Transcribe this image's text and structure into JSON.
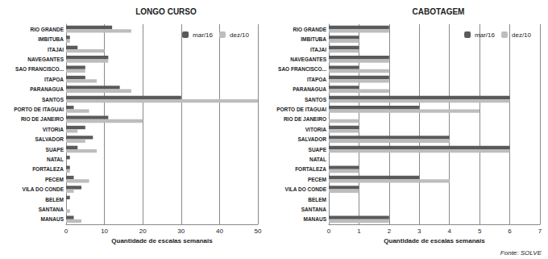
{
  "chart_data": [
    {
      "type": "bar",
      "title": "LONGO CURSO",
      "orientation": "horizontal",
      "x_label": "Quantidade de escalas semanais",
      "categories": [
        "RIO GRANDE",
        "IMBITUBA",
        "ITAJAI",
        "NAVEGANTES",
        "SAO FRANCISCO...",
        "ITAPOA",
        "PARANAGUA",
        "SANTOS",
        "PORTO DE ITAGUAI",
        "RIO DE JANEIRO",
        "VITORIA",
        "SALVADOR",
        "SUAPE",
        "NATAL",
        "FORTALEZA",
        "PECEM",
        "VILA DO CONDE",
        "BELEM",
        "SANTANA",
        "MANAUS"
      ],
      "series": [
        {
          "name": "mar/16",
          "color": "#5a5a5a",
          "values": [
            12,
            1,
            3,
            11,
            5,
            5,
            14,
            30,
            2,
            11,
            5,
            7,
            3,
            1,
            1,
            2,
            4,
            1,
            0,
            2
          ]
        },
        {
          "name": "dez/10",
          "color": "#bdbdbd",
          "values": [
            17,
            1,
            10,
            11,
            5,
            8,
            17,
            50,
            6,
            20,
            3,
            5,
            8,
            0,
            1,
            6,
            2,
            0,
            1,
            4
          ]
        }
      ],
      "xlim": [
        0,
        50
      ],
      "xticks": [
        0,
        10,
        20,
        30,
        40,
        50
      ],
      "grid": true,
      "legend": "upper right"
    },
    {
      "type": "bar",
      "title": "CABOTAGEM",
      "orientation": "horizontal",
      "x_label": "Quantidade de escalas semanais",
      "categories": [
        "RIO GRANDE",
        "IMBITUBA",
        "ITAJAI",
        "NAVEGANTES",
        "SAO FRANCISCO...",
        "ITAPOA",
        "PARANAGUA",
        "SANTOS",
        "PORTO DE ITAGUAI",
        "RIO DE JANEIRO",
        "VITORIA",
        "SALVADOR",
        "SUAPE",
        "NATAL",
        "FORTALEZA",
        "PECEM",
        "VILA DO CONDE",
        "BELEM",
        "SANTANA",
        "MANAUS"
      ],
      "series": [
        {
          "name": "mar/16",
          "color": "#5a5a5a",
          "values": [
            2,
            1,
            1,
            2,
            1,
            2,
            1,
            6,
            3,
            0,
            1,
            4,
            6,
            0,
            1,
            3,
            1,
            0,
            0,
            2
          ]
        },
        {
          "name": "dez/10",
          "color": "#bdbdbd",
          "values": [
            2,
            1,
            1,
            2,
            2,
            2,
            2,
            6,
            5,
            1,
            1,
            4,
            6,
            0,
            1,
            4,
            1,
            0,
            0,
            2
          ]
        }
      ],
      "xlim": [
        0,
        7
      ],
      "xticks": [
        0,
        1,
        2,
        3,
        4,
        5,
        6,
        7
      ],
      "grid": true,
      "legend": "upper right",
      "annotations": [
        "Fonte: SOLVE"
      ]
    }
  ]
}
